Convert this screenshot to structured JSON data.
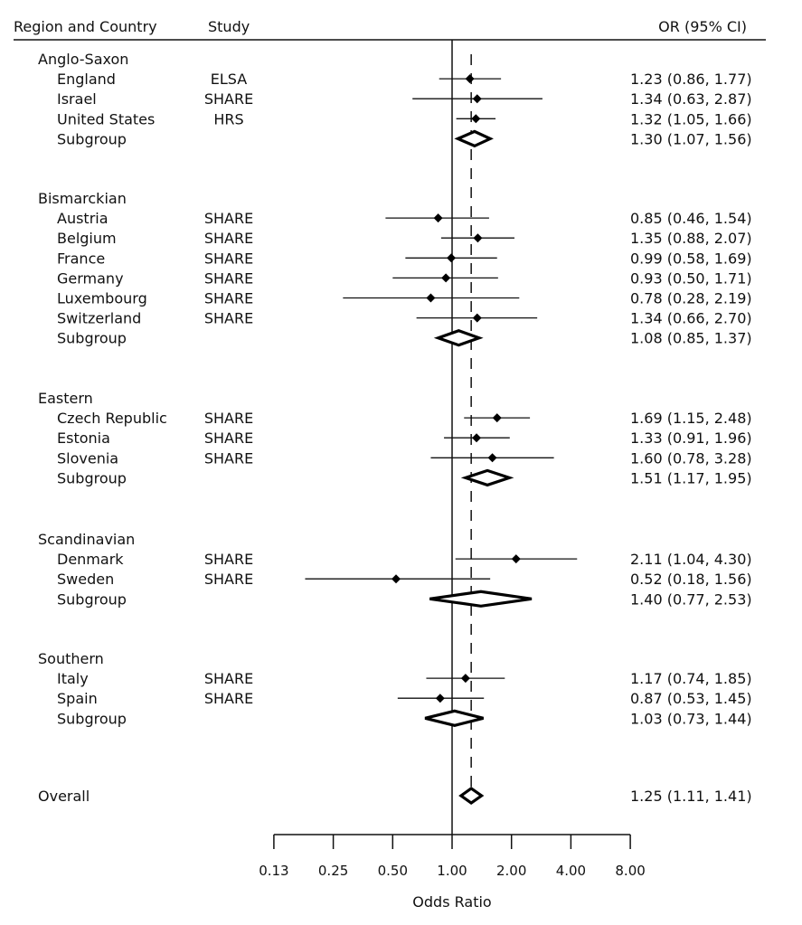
{
  "chart_data": {
    "type": "forest",
    "xlabel": "Odds Ratio",
    "x_scale": "log2",
    "xlim": [
      0.125,
      8.0
    ],
    "xticks": [
      0.125,
      0.25,
      0.5,
      1,
      2,
      4,
      8
    ],
    "xtick_labels": [
      "0.13",
      "0.25",
      "0.50",
      "1.00",
      "2.00",
      "4.00",
      "8.00"
    ],
    "reference_line": 1.0,
    "overall_line": 1.25,
    "headers": {
      "region": "Region and Country",
      "study": "Study",
      "or": "OR (95% CI)"
    },
    "groups": [
      {
        "name": "Anglo-Saxon",
        "studies": [
          {
            "country": "England",
            "study": "ELSA",
            "or": 1.23,
            "lo": 0.86,
            "hi": 1.77,
            "label": "1.23 (0.86, 1.77)"
          },
          {
            "country": "Israel",
            "study": "SHARE",
            "or": 1.34,
            "lo": 0.63,
            "hi": 2.87,
            "label": "1.34 (0.63, 2.87)"
          },
          {
            "country": "United States",
            "study": "HRS",
            "or": 1.32,
            "lo": 1.05,
            "hi": 1.66,
            "label": "1.32 (1.05, 1.66)"
          }
        ],
        "subgroup": {
          "label_text": "Subgroup",
          "or": 1.3,
          "lo": 1.07,
          "hi": 1.56,
          "label": "1.30 (1.07, 1.56)"
        }
      },
      {
        "name": "Bismarckian",
        "studies": [
          {
            "country": "Austria",
            "study": "SHARE",
            "or": 0.85,
            "lo": 0.46,
            "hi": 1.54,
            "label": "0.85 (0.46, 1.54)"
          },
          {
            "country": "Belgium",
            "study": "SHARE",
            "or": 1.35,
            "lo": 0.88,
            "hi": 2.07,
            "label": "1.35 (0.88, 2.07)"
          },
          {
            "country": "France",
            "study": "SHARE",
            "or": 0.99,
            "lo": 0.58,
            "hi": 1.69,
            "label": "0.99 (0.58, 1.69)"
          },
          {
            "country": "Germany",
            "study": "SHARE",
            "or": 0.93,
            "lo": 0.5,
            "hi": 1.71,
            "label": "0.93 (0.50, 1.71)"
          },
          {
            "country": "Luxembourg",
            "study": "SHARE",
            "or": 0.78,
            "lo": 0.28,
            "hi": 2.19,
            "label": "0.78 (0.28, 2.19)"
          },
          {
            "country": "Switzerland",
            "study": "SHARE",
            "or": 1.34,
            "lo": 0.66,
            "hi": 2.7,
            "label": "1.34 (0.66, 2.70)"
          }
        ],
        "subgroup": {
          "label_text": "Subgroup",
          "or": 1.08,
          "lo": 0.85,
          "hi": 1.37,
          "label": "1.08 (0.85, 1.37)"
        }
      },
      {
        "name": "Eastern",
        "studies": [
          {
            "country": "Czech Republic",
            "study": "SHARE",
            "or": 1.69,
            "lo": 1.15,
            "hi": 2.48,
            "label": "1.69 (1.15, 2.48)"
          },
          {
            "country": "Estonia",
            "study": "SHARE",
            "or": 1.33,
            "lo": 0.91,
            "hi": 1.96,
            "label": "1.33 (0.91, 1.96)"
          },
          {
            "country": "Slovenia",
            "study": "SHARE",
            "or": 1.6,
            "lo": 0.78,
            "hi": 3.28,
            "label": "1.60 (0.78, 3.28)"
          }
        ],
        "subgroup": {
          "label_text": "Subgroup",
          "or": 1.51,
          "lo": 1.17,
          "hi": 1.95,
          "label": "1.51 (1.17, 1.95)"
        }
      },
      {
        "name": "Scandinavian",
        "studies": [
          {
            "country": "Denmark",
            "study": "SHARE",
            "or": 2.11,
            "lo": 1.04,
            "hi": 4.3,
            "label": "2.11 (1.04, 4.30)"
          },
          {
            "country": "Sweden",
            "study": "SHARE",
            "or": 0.52,
            "lo": 0.18,
            "hi": 1.56,
            "label": "0.52 (0.18, 1.56)"
          }
        ],
        "subgroup": {
          "label_text": "Subgroup",
          "or": 1.4,
          "lo": 0.77,
          "hi": 2.53,
          "label": "1.40 (0.77, 2.53)"
        }
      },
      {
        "name": "Southern",
        "studies": [
          {
            "country": "Italy",
            "study": "SHARE",
            "or": 1.17,
            "lo": 0.74,
            "hi": 1.85,
            "label": "1.17 (0.74, 1.85)"
          },
          {
            "country": "Spain",
            "study": "SHARE",
            "or": 0.87,
            "lo": 0.53,
            "hi": 1.45,
            "label": "0.87 (0.53, 1.45)"
          }
        ],
        "subgroup": {
          "label_text": "Subgroup",
          "or": 1.03,
          "lo": 0.73,
          "hi": 1.44,
          "label": "1.03 (0.73, 1.44)"
        }
      }
    ],
    "overall": {
      "label_text": "Overall",
      "or": 1.25,
      "lo": 1.11,
      "hi": 1.41,
      "label": "1.25 (1.11, 1.41)"
    }
  }
}
